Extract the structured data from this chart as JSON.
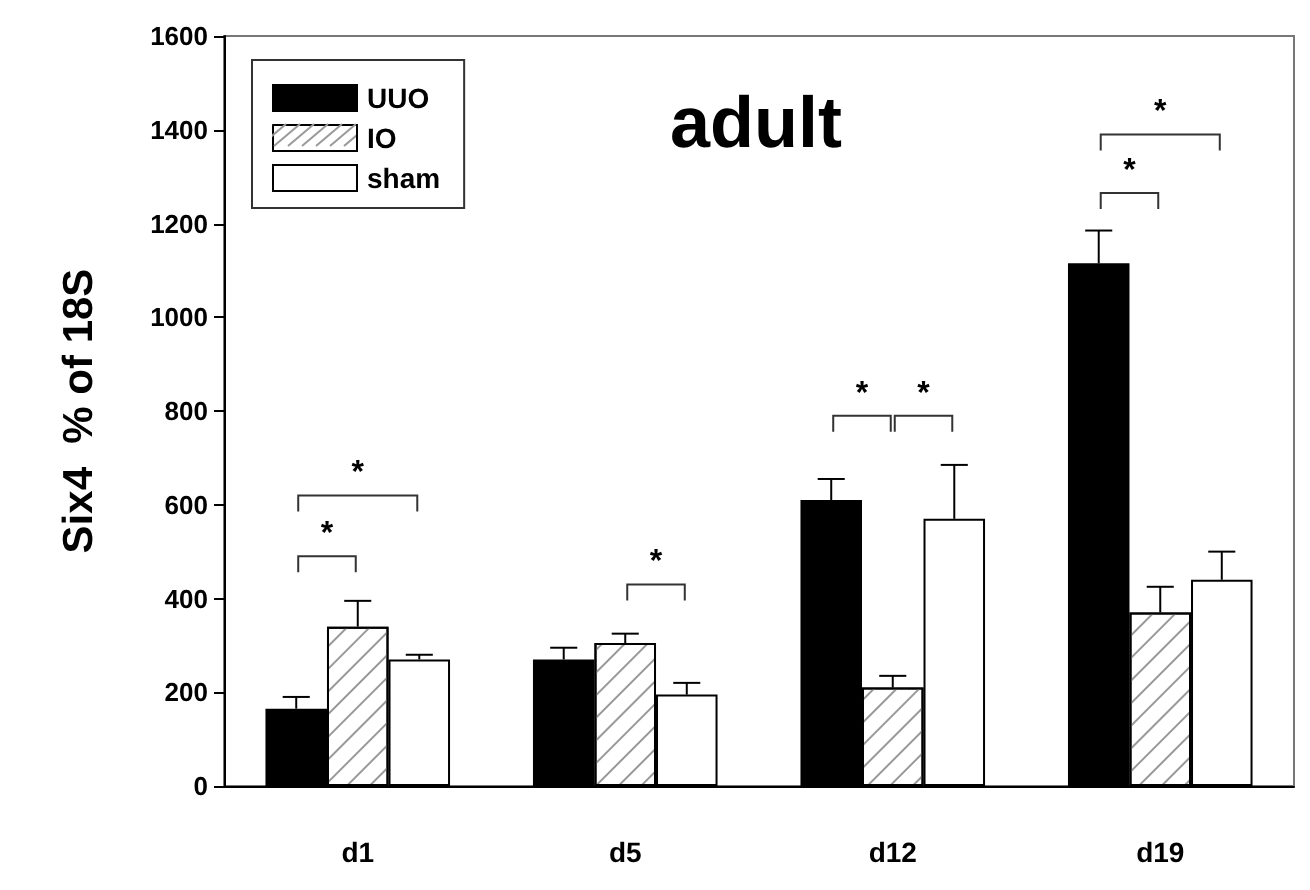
{
  "chart_data": {
    "type": "bar",
    "title": "adult",
    "ylabel": "Six4  % of 18S",
    "categories": [
      "d1",
      "d5",
      "d12",
      "d19"
    ],
    "series": [
      {
        "name": "UUO",
        "color": "#000000",
        "values": [
          165,
          270,
          610,
          1115
        ],
        "errors": [
          [
            165,
            190
          ],
          [
            270,
            295
          ],
          [
            610,
            655
          ],
          [
            1115,
            1185
          ]
        ]
      },
      {
        "name": "IO",
        "color": "#ffffff",
        "values": [
          340,
          305,
          210,
          370
        ],
        "errors": [
          [
            340,
            395
          ],
          [
            305,
            325
          ],
          [
            210,
            235
          ],
          [
            370,
            425
          ]
        ]
      },
      {
        "name": "sham",
        "color": "#ffffff",
        "values": [
          270,
          195,
          570,
          440
        ],
        "errors": [
          [
            270,
            280
          ],
          [
            195,
            220
          ],
          [
            570,
            685
          ],
          [
            440,
            500
          ]
        ]
      }
    ],
    "ylim": [
      0,
      1600
    ],
    "yticks": [
      0,
      200,
      400,
      600,
      800,
      1000,
      1200,
      1400,
      1600
    ],
    "grid": false,
    "legend": "top left",
    "annotations": [
      "*",
      "*",
      "*",
      "*",
      "*",
      "*",
      "*"
    ]
  }
}
